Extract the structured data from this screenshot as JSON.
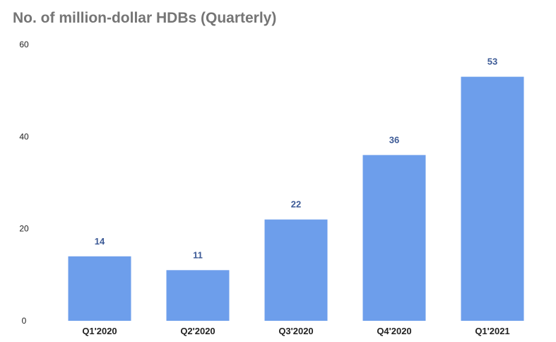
{
  "chart_data": {
    "type": "bar",
    "title": "No. of million-dollar HDBs (Quarterly)",
    "categories": [
      "Q1'2020",
      "Q2'2020",
      "Q3'2020",
      "Q4'2020",
      "Q1'2021"
    ],
    "values": [
      14,
      11,
      22,
      36,
      53
    ],
    "data_labels": [
      "14",
      "11",
      "22",
      "36",
      "53"
    ],
    "yticks": [
      0,
      20,
      40,
      60
    ],
    "ylim": [
      0,
      60
    ],
    "grid": false,
    "legend": "none",
    "bar_color": "#6d9eeb",
    "label_color": "#3c5a96"
  }
}
